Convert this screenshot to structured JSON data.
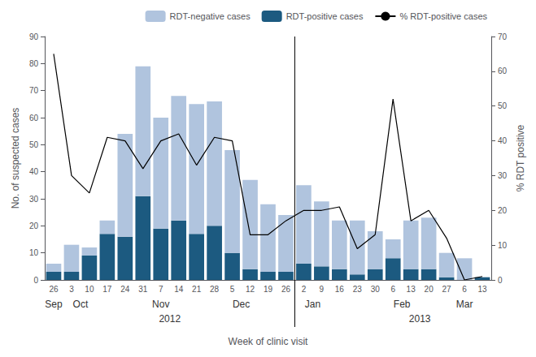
{
  "chart_data": {
    "type": "bar",
    "categories": [
      "26",
      "3",
      "10",
      "17",
      "24",
      "31",
      "7",
      "14",
      "21",
      "28",
      "5",
      "12",
      "19",
      "26",
      "2",
      "9",
      "16",
      "23",
      "30",
      "6",
      "13",
      "20",
      "27",
      "6",
      "13"
    ],
    "series": [
      {
        "name": "RDT-negative cases",
        "type": "bar",
        "color": "#b0c4de",
        "values": [
          3,
          10,
          3,
          5,
          38,
          48,
          41,
          46,
          48,
          46,
          38,
          33,
          25,
          21,
          29,
          24,
          18,
          20,
          14,
          7,
          18,
          19,
          9,
          8,
          0
        ]
      },
      {
        "name": "RDT-positive cases",
        "type": "bar",
        "color": "#1c5a80",
        "values": [
          3,
          3,
          9,
          17,
          16,
          31,
          19,
          22,
          17,
          20,
          10,
          4,
          3,
          3,
          6,
          5,
          4,
          2,
          4,
          8,
          4,
          4,
          1,
          0,
          1
        ]
      },
      {
        "name": "% RDT-positive cases",
        "type": "line",
        "axis": "y2",
        "color": "#000000",
        "values": [
          65,
          30,
          25,
          41,
          40,
          32,
          40,
          42,
          33,
          41,
          40,
          13,
          13,
          17,
          20,
          20,
          21,
          9,
          13,
          52,
          17,
          20,
          12,
          0,
          1
        ]
      }
    ],
    "stacked": true,
    "xlabel": "Week of clinic visit",
    "ylabel": "No. of suspected cases",
    "y2label": "% RDT positive",
    "ylim": [
      0,
      90
    ],
    "yticks": [
      0,
      10,
      20,
      30,
      40,
      50,
      60,
      70,
      80,
      90
    ],
    "y2lim": [
      0,
      70
    ],
    "y2ticks": [
      0,
      10,
      20,
      30,
      40,
      50,
      60,
      70
    ],
    "annotations": [
      {
        "text": "Sep",
        "x": 0,
        "row": 1
      },
      {
        "text": "Oct",
        "x": 1.5,
        "row": 1
      },
      {
        "text": "Nov",
        "x": 6.0,
        "row": 1
      },
      {
        "text": "Dec",
        "x": 10.5,
        "row": 1
      },
      {
        "text": "Jan",
        "x": 14.5,
        "row": 1
      },
      {
        "text": "Feb",
        "x": 19.5,
        "row": 1
      },
      {
        "text": "Mar",
        "x": 23.0,
        "row": 1
      },
      {
        "text": "2012",
        "x": 6.5,
        "row": 2
      },
      {
        "text": "2013",
        "x": 20.5,
        "row": 2
      }
    ],
    "vlines": [
      13.5
    ],
    "legend": "upper right",
    "grid": false
  }
}
